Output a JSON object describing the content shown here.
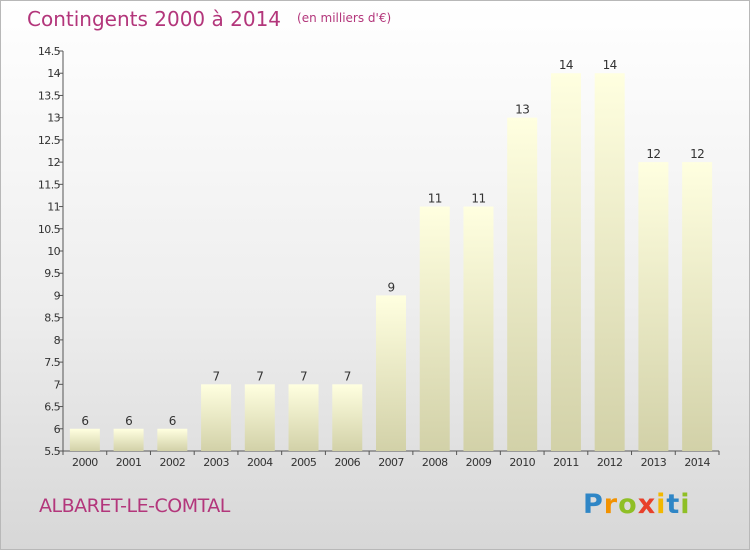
{
  "header": {
    "title": "Contingents 2000 à 2014",
    "subtitle": "(en milliers d'€)"
  },
  "footer": {
    "commune": "ALBARET-LE-COMTAL",
    "logo": {
      "letters": [
        "P",
        "r",
        "o",
        "x",
        "i",
        "t",
        "i"
      ],
      "colors": [
        "#2f86c6",
        "#f29200",
        "#8fbf26",
        "#e8402a",
        "#f2b800",
        "#2f86c6",
        "#8fbf26"
      ]
    }
  },
  "colors": {
    "title": "#b3367b",
    "bar_light": "#ffffe0",
    "bar_dark": "#d2d1a8",
    "text": "#333333"
  },
  "chart_data": {
    "type": "bar",
    "categories": [
      "2000",
      "2001",
      "2002",
      "2003",
      "2004",
      "2005",
      "2006",
      "2007",
      "2008",
      "2009",
      "2010",
      "2011",
      "2012",
      "2013",
      "2014"
    ],
    "values": [
      6,
      6,
      6,
      7,
      7,
      7,
      7,
      9,
      11,
      11,
      13,
      14,
      14,
      12,
      12
    ],
    "value_labels": [
      "6",
      "6",
      "6",
      "7",
      "7",
      "7",
      "7",
      "9",
      "11",
      "11",
      "13",
      "14",
      "14",
      "12",
      "12"
    ],
    "title": "Contingents 2000 à 2014",
    "subtitle": "(en milliers d'€)",
    "ylim": [
      5.5,
      14.5
    ],
    "yticks": [
      "5.5",
      "6",
      "6.5",
      "7",
      "7.5",
      "8",
      "8.5",
      "9",
      "9.5",
      "10",
      "10.5",
      "11",
      "11.5",
      "12",
      "12.5",
      "13",
      "13.5",
      "14",
      "14.5"
    ],
    "grid": false,
    "legend": "none"
  }
}
